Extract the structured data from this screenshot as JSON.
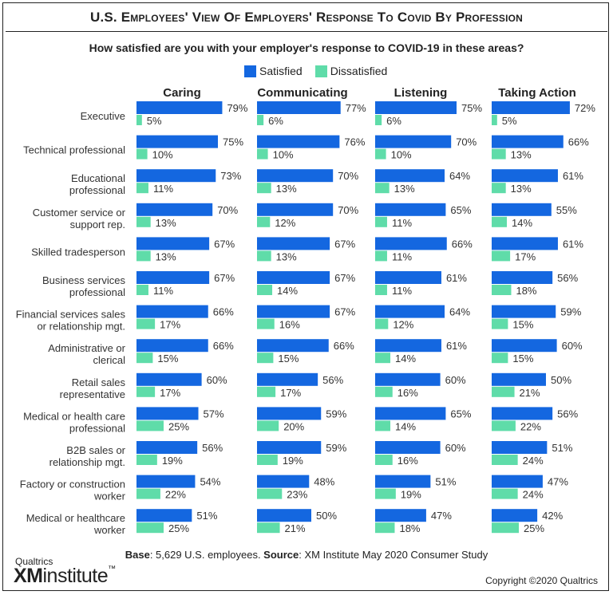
{
  "header": {
    "title": "U.S. Employees' View Of Employers' Response To Covid By Profession",
    "subtitle": "How satisfied are you with your employer's response to COVID-19 in these areas?"
  },
  "legend": {
    "satisfied_label": "Satisfied",
    "dissatisfied_label": "Dissatisfied"
  },
  "colors": {
    "satisfied": "#1467E0",
    "dissatisfied": "#5FDCA9"
  },
  "chart_data": {
    "type": "bar",
    "orientation": "horizontal",
    "panels": [
      "Caring",
      "Communicating",
      "Listening",
      "Taking Action"
    ],
    "categories": [
      "Executive",
      "Technical professional",
      "Educational professional",
      "Customer service or support rep.",
      "Skilled tradesperson",
      "Business services professional",
      "Financial services sales or relationship mgt.",
      "Administrative or clerical",
      "Retail sales representative",
      "Medical or health care professional",
      "B2B sales or relationship mgt.",
      "Factory or construction worker",
      "Medical or healthcare worker"
    ],
    "category_lines": [
      [
        "Executive"
      ],
      [
        "Technical professional"
      ],
      [
        "Educational",
        "professional"
      ],
      [
        "Customer service or",
        "support rep."
      ],
      [
        "Skilled tradesperson"
      ],
      [
        "Business services",
        "professional"
      ],
      [
        "Financial services sales",
        "or relationship mgt."
      ],
      [
        "Administrative or",
        "clerical"
      ],
      [
        "Retail sales",
        "representative"
      ],
      [
        "Medical or health care",
        "professional"
      ],
      [
        "B2B sales or",
        "relationship mgt."
      ],
      [
        "Factory or construction",
        "worker"
      ],
      [
        "Medical or healthcare",
        "worker"
      ]
    ],
    "series": [
      {
        "name": "Satisfied",
        "values": [
          [
            79,
            75,
            73,
            70,
            67,
            67,
            66,
            66,
            60,
            57,
            56,
            54,
            51
          ],
          [
            77,
            76,
            70,
            70,
            67,
            67,
            67,
            66,
            56,
            59,
            59,
            48,
            50
          ],
          [
            75,
            70,
            64,
            65,
            66,
            61,
            64,
            61,
            60,
            65,
            60,
            51,
            47
          ],
          [
            72,
            66,
            61,
            55,
            61,
            56,
            59,
            60,
            50,
            56,
            51,
            47,
            42
          ]
        ]
      },
      {
        "name": "Dissatisfied",
        "values": [
          [
            5,
            10,
            11,
            13,
            13,
            11,
            17,
            15,
            17,
            25,
            19,
            22,
            25
          ],
          [
            6,
            10,
            13,
            12,
            13,
            14,
            16,
            15,
            17,
            20,
            19,
            23,
            21
          ],
          [
            6,
            10,
            13,
            11,
            11,
            11,
            12,
            14,
            16,
            14,
            16,
            19,
            18
          ],
          [
            5,
            13,
            13,
            14,
            17,
            18,
            15,
            15,
            21,
            22,
            24,
            24,
            25
          ]
        ]
      }
    ],
    "value_suffix": "%",
    "xlim": [
      0,
      100
    ],
    "legend_position": "top-center",
    "grid": false
  },
  "footer": {
    "base_label": "Base",
    "base_text": ": 5,629 U.S. employees. ",
    "source_label": "Source",
    "source_text": ": XM Institute May 2020 Consumer Study",
    "brand_top": "Qualtrics",
    "brand_xm": "XM",
    "brand_rest": "institute",
    "brand_tm": "™",
    "copyright": "Copyright ©2020 Qualtrics"
  }
}
